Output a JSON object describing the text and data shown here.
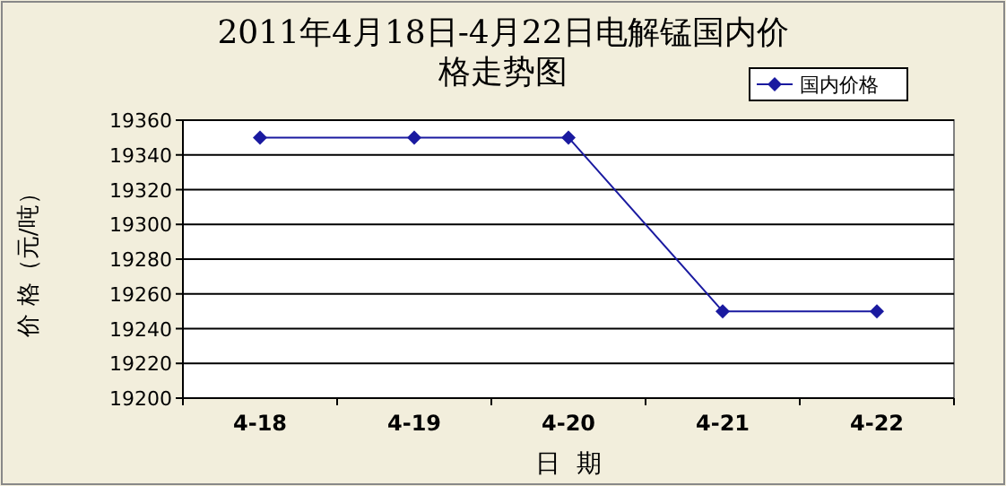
{
  "chart_data": {
    "type": "line",
    "title": "2011年4月18日-4月22日电解锰国内价格走势图",
    "xlabel": "日  期",
    "ylabel": "价 格（元/吨）",
    "categories": [
      "4-18",
      "4-19",
      "4-20",
      "4-21",
      "4-22"
    ],
    "series": [
      {
        "name": "国内价格",
        "color": "#1a1aa0",
        "values": [
          19350,
          19350,
          19350,
          19250,
          19250
        ]
      }
    ],
    "ylim": [
      19200,
      19360
    ],
    "yticks": [
      19200,
      19220,
      19240,
      19260,
      19280,
      19300,
      19320,
      19340,
      19360
    ],
    "grid": "y",
    "legend": "top right",
    "marker": "diamond",
    "line_style": "solid"
  }
}
